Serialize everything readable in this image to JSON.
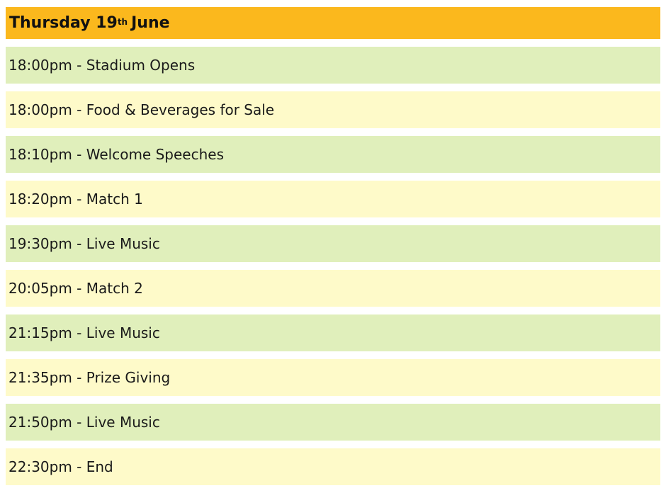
{
  "header": {
    "title_prefix": "Thursday 19",
    "title_sup": "th",
    "title_suffix": "June"
  },
  "colors": {
    "header": "#fbb81d",
    "row_green": "#e0efbb",
    "row_yellow": "#fefac9"
  },
  "events": [
    {
      "text": "18:00pm - Stadium Opens"
    },
    {
      "text": "18:00pm - Food & Beverages for Sale"
    },
    {
      "text": "18:10pm - Welcome Speeches"
    },
    {
      "text": "18:20pm - Match 1"
    },
    {
      "text": "19:30pm - Live Music"
    },
    {
      "text": "20:05pm - Match 2"
    },
    {
      "text": "21:15pm - Live Music"
    },
    {
      "text": "21:35pm - Prize Giving"
    },
    {
      "text": "21:50pm - Live Music"
    },
    {
      "text": "22:30pm - End"
    }
  ]
}
